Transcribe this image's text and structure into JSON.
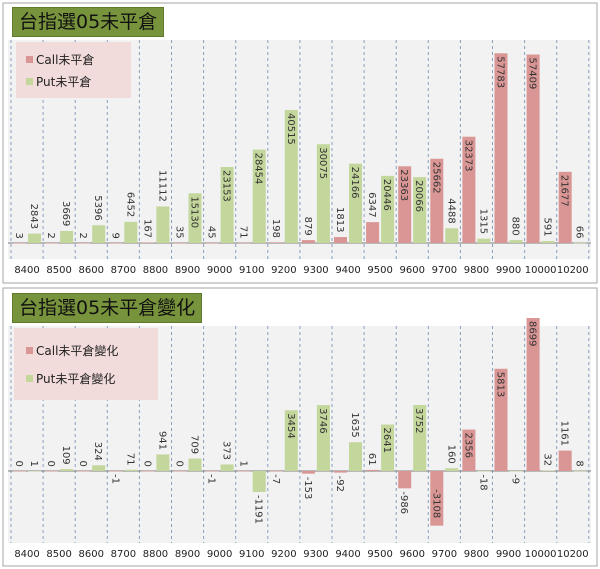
{
  "chart_data": [
    {
      "type": "bar",
      "title": "台指選05未平倉",
      "categories": [
        "8400",
        "8500",
        "8600",
        "8700",
        "8800",
        "8900",
        "9000",
        "9100",
        "9200",
        "9300",
        "9400",
        "9500",
        "9600",
        "9700",
        "9800",
        "9900",
        "10000",
        "10200"
      ],
      "series": [
        {
          "name": "Call未平倉",
          "color": "#d99694",
          "values": [
            3,
            2,
            2,
            9,
            167,
            35,
            45,
            71,
            198,
            879,
            1813,
            6347,
            23363,
            25662,
            32373,
            57783,
            57409,
            21677
          ]
        },
        {
          "name": "Put未平倉",
          "color": "#c3d69b",
          "values": [
            2843,
            3669,
            5396,
            6452,
            11112,
            15130,
            23153,
            28454,
            40515,
            30075,
            24166,
            20446,
            20066,
            4488,
            1315,
            880,
            591,
            66
          ]
        }
      ],
      "ylim": [
        0,
        60000
      ],
      "legend": "top-left",
      "grid": "vertical dashed"
    },
    {
      "type": "bar",
      "title": "台指選05未平倉變化",
      "categories": [
        "8400",
        "8500",
        "8600",
        "8700",
        "8800",
        "8900",
        "9000",
        "9100",
        "9200",
        "9300",
        "9400",
        "9500",
        "9600",
        "9700",
        "9800",
        "9900",
        "10000",
        "10200"
      ],
      "series": [
        {
          "name": "Call未平倉變化",
          "color": "#d99694",
          "values": [
            0,
            0,
            0,
            -1,
            0,
            0,
            -1,
            1,
            -7,
            -153,
            -92,
            61,
            -986,
            -3108,
            2356,
            5813,
            8699,
            1161
          ]
        },
        {
          "name": "Put未平倉變化",
          "color": "#c3d69b",
          "values": [
            1,
            109,
            324,
            71,
            941,
            709,
            373,
            -1191,
            3454,
            3746,
            1635,
            2641,
            3752,
            160,
            -18,
            -9,
            32,
            8
          ]
        }
      ],
      "ylim": [
        -4000,
        9000
      ],
      "legend": "top-left",
      "grid": "vertical dashed"
    }
  ]
}
